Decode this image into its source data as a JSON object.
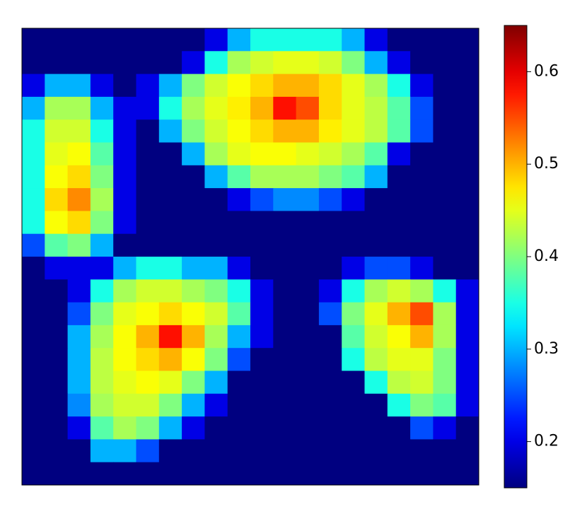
{
  "chart_data": {
    "type": "heatmap",
    "colormap": "jet",
    "clim": [
      0.15,
      0.65
    ],
    "colorbar_ticks": [
      0.2,
      0.3,
      0.4,
      0.5,
      0.6
    ],
    "values": [
      [
        0.15,
        0.15,
        0.15,
        0.15,
        0.15,
        0.15,
        0.15,
        0.15,
        0.2,
        0.3,
        0.35,
        0.35,
        0.35,
        0.35,
        0.3,
        0.2,
        0.15,
        0.15,
        0.15,
        0.15
      ],
      [
        0.15,
        0.15,
        0.15,
        0.15,
        0.15,
        0.15,
        0.15,
        0.2,
        0.35,
        0.42,
        0.44,
        0.45,
        0.45,
        0.44,
        0.4,
        0.3,
        0.2,
        0.15,
        0.15,
        0.15
      ],
      [
        0.2,
        0.3,
        0.3,
        0.2,
        0.15,
        0.2,
        0.3,
        0.4,
        0.44,
        0.46,
        0.48,
        0.5,
        0.5,
        0.48,
        0.45,
        0.42,
        0.35,
        0.2,
        0.15,
        0.15
      ],
      [
        0.3,
        0.42,
        0.42,
        0.3,
        0.2,
        0.2,
        0.35,
        0.42,
        0.45,
        0.47,
        0.5,
        0.58,
        0.55,
        0.48,
        0.45,
        0.43,
        0.38,
        0.25,
        0.15,
        0.15
      ],
      [
        0.35,
        0.44,
        0.44,
        0.35,
        0.2,
        0.15,
        0.3,
        0.4,
        0.44,
        0.46,
        0.48,
        0.5,
        0.5,
        0.47,
        0.45,
        0.43,
        0.38,
        0.25,
        0.15,
        0.15
      ],
      [
        0.35,
        0.45,
        0.46,
        0.38,
        0.2,
        0.15,
        0.15,
        0.3,
        0.42,
        0.45,
        0.46,
        0.46,
        0.45,
        0.44,
        0.42,
        0.38,
        0.2,
        0.15,
        0.15,
        0.15
      ],
      [
        0.35,
        0.46,
        0.48,
        0.4,
        0.2,
        0.15,
        0.15,
        0.15,
        0.3,
        0.38,
        0.42,
        0.42,
        0.42,
        0.4,
        0.38,
        0.3,
        0.15,
        0.15,
        0.15,
        0.15
      ],
      [
        0.35,
        0.48,
        0.52,
        0.42,
        0.2,
        0.15,
        0.15,
        0.15,
        0.15,
        0.2,
        0.25,
        0.28,
        0.28,
        0.25,
        0.2,
        0.15,
        0.15,
        0.15,
        0.15,
        0.15
      ],
      [
        0.35,
        0.46,
        0.48,
        0.4,
        0.2,
        0.15,
        0.15,
        0.15,
        0.15,
        0.15,
        0.15,
        0.15,
        0.15,
        0.15,
        0.15,
        0.15,
        0.15,
        0.15,
        0.15,
        0.15
      ],
      [
        0.25,
        0.38,
        0.4,
        0.3,
        0.15,
        0.15,
        0.15,
        0.15,
        0.15,
        0.15,
        0.15,
        0.15,
        0.15,
        0.15,
        0.15,
        0.15,
        0.15,
        0.15,
        0.15,
        0.15
      ],
      [
        0.15,
        0.2,
        0.2,
        0.2,
        0.3,
        0.35,
        0.35,
        0.3,
        0.3,
        0.2,
        0.15,
        0.15,
        0.15,
        0.15,
        0.2,
        0.25,
        0.25,
        0.2,
        0.15,
        0.15
      ],
      [
        0.15,
        0.15,
        0.2,
        0.35,
        0.42,
        0.44,
        0.44,
        0.42,
        0.4,
        0.35,
        0.2,
        0.15,
        0.15,
        0.2,
        0.35,
        0.42,
        0.44,
        0.42,
        0.35,
        0.2
      ],
      [
        0.15,
        0.15,
        0.25,
        0.4,
        0.45,
        0.46,
        0.48,
        0.46,
        0.44,
        0.38,
        0.2,
        0.15,
        0.15,
        0.25,
        0.4,
        0.45,
        0.5,
        0.55,
        0.42,
        0.2
      ],
      [
        0.15,
        0.15,
        0.3,
        0.42,
        0.46,
        0.5,
        0.58,
        0.5,
        0.42,
        0.3,
        0.2,
        0.15,
        0.15,
        0.15,
        0.38,
        0.44,
        0.46,
        0.5,
        0.42,
        0.2
      ],
      [
        0.15,
        0.15,
        0.3,
        0.43,
        0.46,
        0.48,
        0.5,
        0.46,
        0.4,
        0.25,
        0.15,
        0.15,
        0.15,
        0.15,
        0.35,
        0.43,
        0.45,
        0.45,
        0.4,
        0.2
      ],
      [
        0.15,
        0.15,
        0.3,
        0.43,
        0.45,
        0.46,
        0.45,
        0.4,
        0.3,
        0.15,
        0.15,
        0.15,
        0.15,
        0.15,
        0.15,
        0.35,
        0.43,
        0.44,
        0.4,
        0.2
      ],
      [
        0.15,
        0.15,
        0.28,
        0.42,
        0.44,
        0.44,
        0.4,
        0.3,
        0.2,
        0.15,
        0.15,
        0.15,
        0.15,
        0.15,
        0.15,
        0.15,
        0.35,
        0.4,
        0.38,
        0.2
      ],
      [
        0.15,
        0.15,
        0.2,
        0.38,
        0.42,
        0.4,
        0.3,
        0.2,
        0.15,
        0.15,
        0.15,
        0.15,
        0.15,
        0.15,
        0.15,
        0.15,
        0.15,
        0.25,
        0.2,
        0.15
      ],
      [
        0.15,
        0.15,
        0.15,
        0.3,
        0.3,
        0.25,
        0.15,
        0.15,
        0.15,
        0.15,
        0.15,
        0.15,
        0.15,
        0.15,
        0.15,
        0.15,
        0.15,
        0.15,
        0.15,
        0.15
      ],
      [
        0.15,
        0.15,
        0.15,
        0.15,
        0.15,
        0.15,
        0.15,
        0.15,
        0.15,
        0.15,
        0.15,
        0.15,
        0.15,
        0.15,
        0.15,
        0.15,
        0.15,
        0.15,
        0.15,
        0.15
      ]
    ]
  }
}
